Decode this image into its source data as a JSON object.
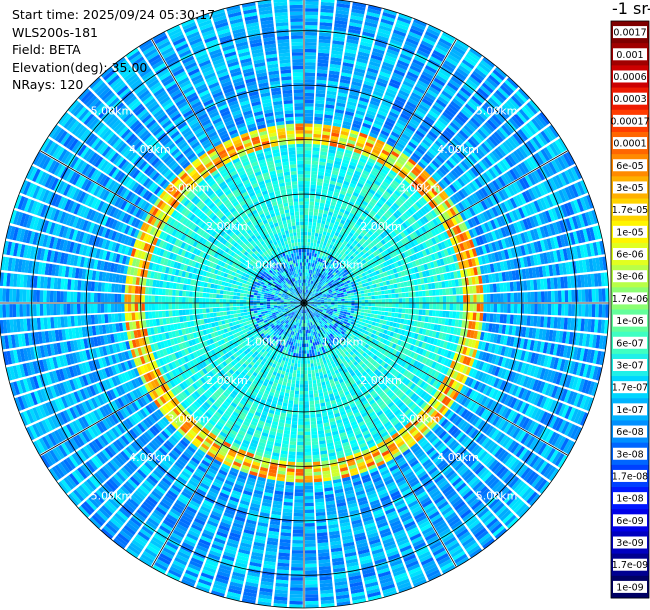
{
  "info": {
    "start_time": "Start time: 2025/09/24 05:30:17",
    "instrument": "WLS200s-181",
    "field": "Field: BETA",
    "elevation": "Elevation(deg): 35.00",
    "nrays": "NRays: 120"
  },
  "colorbar": {
    "title": "-1 sr-",
    "labels": [
      "0.0017",
      "0.001",
      "0.0006",
      "0.0003",
      "0.00017",
      "0.0001",
      "6e-05",
      "3e-05",
      "1.7e-05",
      "1e-05",
      "6e-06",
      "3e-06",
      "1.7e-06",
      "1e-06",
      "6e-07",
      "3e-07",
      "1.7e-07",
      "1e-07",
      "6e-08",
      "3e-08",
      "1.7e-08",
      "1e-08",
      "6e-09",
      "3e-09",
      "1.7e-09",
      "1e-09"
    ],
    "colors": [
      "#7f0000",
      "#a00000",
      "#cc0000",
      "#ee1a00",
      "#ff3c00",
      "#ff6600",
      "#ff8a00",
      "#ffb000",
      "#ffd400",
      "#fff500",
      "#e2ff20",
      "#b8ff48",
      "#8cff72",
      "#62ff9c",
      "#3fffc2",
      "#20f0e8",
      "#00d6ff",
      "#00b4ff",
      "#0090ff",
      "#0066ff",
      "#0040ff",
      "#0018ff",
      "#0000e8",
      "#0000c0",
      "#000090",
      "#000064"
    ]
  },
  "chart_data": {
    "type": "polar-ppi",
    "field": "BETA",
    "nrays": 120,
    "elevation_deg": 35.0,
    "range_rings_km": [
      1,
      2,
      3,
      4,
      5
    ],
    "ring_labels": [
      "1.00km",
      "2.00km",
      "3.00km",
      "4.00km",
      "5.00km"
    ],
    "max_range_km": 5.6,
    "colormap": "jet",
    "color_scale": "log",
    "value_range": [
      1e-09,
      0.0017
    ]
  }
}
